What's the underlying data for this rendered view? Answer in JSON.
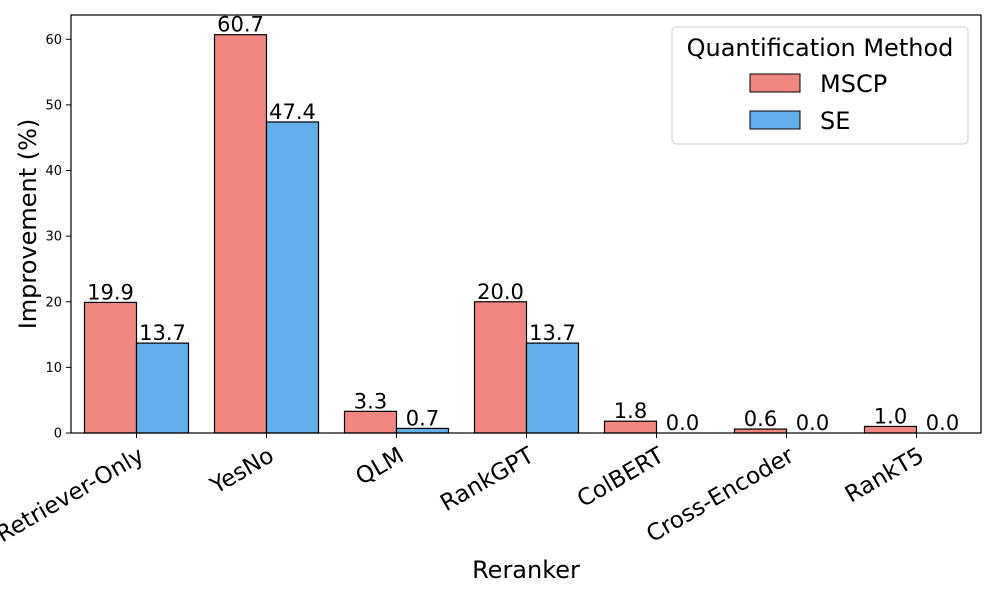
{
  "chart_data": {
    "type": "bar",
    "xlabel": "Reranker",
    "ylabel": "Improvement (%)",
    "ylim": [
      0,
      63.7
    ],
    "yticks": [
      0,
      10,
      20,
      30,
      40,
      50,
      60
    ],
    "categories": [
      "Retriever-Only",
      "YesNo",
      "QLM",
      "RankGPT",
      "ColBERT",
      "Cross-Encoder",
      "RankT5"
    ],
    "series": [
      {
        "name": "MSCP",
        "color": "#f08680",
        "values": [
          19.9,
          60.7,
          3.3,
          20.0,
          1.8,
          0.6,
          1.0
        ],
        "labels": [
          "19.9",
          "60.7",
          "3.3",
          "20.0",
          "1.8",
          "0.6",
          "1.0"
        ]
      },
      {
        "name": "SE",
        "color": "#63afea",
        "values": [
          13.7,
          47.4,
          0.7,
          13.7,
          0.0,
          0.0,
          0.0
        ],
        "labels": [
          "13.7",
          "47.4",
          "0.7",
          "13.7",
          "0.0",
          "0.0",
          "0.0"
        ]
      }
    ],
    "legend": {
      "title": "Quantification Method",
      "placement": "top-right"
    },
    "grid": false
  }
}
